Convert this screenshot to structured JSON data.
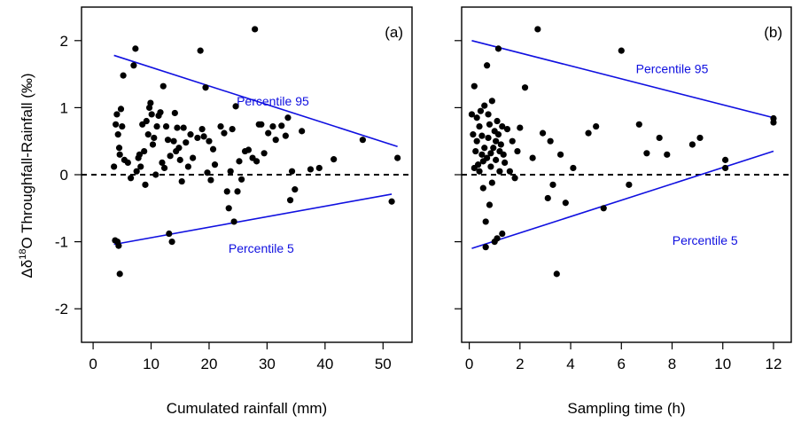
{
  "ylabel_parts": {
    "delta": "Δδ",
    "sup": "18",
    "rest": "O Throughfall-Rainfall (‰)"
  },
  "chart_data": [
    {
      "type": "scatter",
      "panel_label": "(a)",
      "xlabel": "Cumulated rainfall (mm)",
      "ylabel": "Δδ18O Throughfall-Rainfall (‰)",
      "xlim": [
        -2,
        55
      ],
      "ylim": [
        -2.5,
        2.5
      ],
      "xticks": [
        0,
        10,
        20,
        30,
        40,
        50
      ],
      "yticks": [
        -2,
        -1,
        0,
        1,
        2
      ],
      "zero_line": {
        "y": 0,
        "style": "dashed",
        "color": "#000000"
      },
      "point_color": "#000000",
      "line_color": "#1010e0",
      "lines": [
        {
          "name": "Percentile 95",
          "x": [
            3.6,
            52.5
          ],
          "y": [
            1.78,
            0.42
          ]
        },
        {
          "name": "Percentile 5",
          "x": [
            3.6,
            51.5
          ],
          "y": [
            -1.04,
            -0.29
          ]
        }
      ],
      "points": [
        [
          3.6,
          0.12
        ],
        [
          3.9,
          0.75
        ],
        [
          4.1,
          0.9
        ],
        [
          4.3,
          0.6
        ],
        [
          4.5,
          0.4
        ],
        [
          4.6,
          0.3
        ],
        [
          4.8,
          0.98
        ],
        [
          5.0,
          0.72
        ],
        [
          5.2,
          1.48
        ],
        [
          5.4,
          0.22
        ],
        [
          4.2,
          -1.0
        ],
        [
          4.4,
          -1.06
        ],
        [
          4.6,
          -1.48
        ],
        [
          3.8,
          -0.98
        ],
        [
          6.0,
          0.18
        ],
        [
          6.5,
          -0.05
        ],
        [
          7.0,
          1.63
        ],
        [
          7.3,
          1.88
        ],
        [
          7.5,
          0.05
        ],
        [
          7.8,
          0.25
        ],
        [
          8.0,
          0.3
        ],
        [
          8.2,
          0.12
        ],
        [
          8.5,
          0.75
        ],
        [
          8.8,
          0.35
        ],
        [
          9.0,
          -0.15
        ],
        [
          9.2,
          0.8
        ],
        [
          9.5,
          0.6
        ],
        [
          9.7,
          1.0
        ],
        [
          9.9,
          1.07
        ],
        [
          10.1,
          0.9
        ],
        [
          10.3,
          0.45
        ],
        [
          10.5,
          0.55
        ],
        [
          10.8,
          0.0
        ],
        [
          11.0,
          0.72
        ],
        [
          11.3,
          0.88
        ],
        [
          11.6,
          0.93
        ],
        [
          11.9,
          0.18
        ],
        [
          12.1,
          1.32
        ],
        [
          12.3,
          0.1
        ],
        [
          12.6,
          0.72
        ],
        [
          12.9,
          0.52
        ],
        [
          13.1,
          -0.88
        ],
        [
          13.3,
          0.28
        ],
        [
          13.6,
          -1.0
        ],
        [
          13.9,
          0.5
        ],
        [
          14.1,
          0.92
        ],
        [
          14.3,
          0.35
        ],
        [
          14.5,
          0.7
        ],
        [
          14.8,
          0.4
        ],
        [
          15.0,
          0.22
        ],
        [
          15.3,
          -0.1
        ],
        [
          15.6,
          0.7
        ],
        [
          16.0,
          0.48
        ],
        [
          16.4,
          0.12
        ],
        [
          16.8,
          0.6
        ],
        [
          17.2,
          0.25
        ],
        [
          18.0,
          0.55
        ],
        [
          18.5,
          1.85
        ],
        [
          18.8,
          0.68
        ],
        [
          19.1,
          0.57
        ],
        [
          19.4,
          1.3
        ],
        [
          19.7,
          0.03
        ],
        [
          20.0,
          0.5
        ],
        [
          20.3,
          -0.08
        ],
        [
          20.7,
          0.38
        ],
        [
          21.0,
          0.15
        ],
        [
          22.0,
          0.72
        ],
        [
          22.6,
          0.62
        ],
        [
          23.1,
          -0.25
        ],
        [
          23.4,
          -0.5
        ],
        [
          23.7,
          0.05
        ],
        [
          24.0,
          0.68
        ],
        [
          24.3,
          -0.7
        ],
        [
          24.6,
          1.02
        ],
        [
          24.9,
          -0.25
        ],
        [
          25.2,
          0.2
        ],
        [
          25.6,
          -0.07
        ],
        [
          26.2,
          0.35
        ],
        [
          26.8,
          0.37
        ],
        [
          27.5,
          0.25
        ],
        [
          27.9,
          2.17
        ],
        [
          28.2,
          0.2
        ],
        [
          28.6,
          0.75
        ],
        [
          29.0,
          0.75
        ],
        [
          29.5,
          0.32
        ],
        [
          30.2,
          0.62
        ],
        [
          31.0,
          0.72
        ],
        [
          31.5,
          0.52
        ],
        [
          32.5,
          0.73
        ],
        [
          33.2,
          0.58
        ],
        [
          33.6,
          0.85
        ],
        [
          34.0,
          -0.38
        ],
        [
          34.3,
          0.05
        ],
        [
          34.8,
          -0.22
        ],
        [
          36.0,
          0.65
        ],
        [
          37.5,
          0.08
        ],
        [
          39.0,
          0.1
        ],
        [
          41.5,
          0.23
        ],
        [
          46.5,
          0.52
        ],
        [
          51.5,
          -0.4
        ],
        [
          52.5,
          0.25
        ]
      ],
      "annotations": [
        {
          "text": "Percentile 95",
          "x": 31,
          "y": 1.1
        },
        {
          "text": "Percentile 5",
          "x": 29,
          "y": -1.1
        }
      ]
    },
    {
      "type": "scatter",
      "panel_label": "(b)",
      "xlabel": "Sampling time (h)",
      "ylabel": "",
      "xlim": [
        -0.3,
        12.7
      ],
      "ylim": [
        -2.5,
        2.5
      ],
      "xticks": [
        0,
        2,
        4,
        6,
        8,
        10,
        12
      ],
      "yticks": [
        -2,
        -1,
        0,
        1,
        2
      ],
      "zero_line": {
        "y": 0,
        "style": "dashed",
        "color": "#000000"
      },
      "point_color": "#000000",
      "line_color": "#1010e0",
      "lines": [
        {
          "name": "Percentile 95",
          "x": [
            0.1,
            12.0
          ],
          "y": [
            2.0,
            0.85
          ]
        },
        {
          "name": "Percentile 5",
          "x": [
            0.1,
            12.0
          ],
          "y": [
            -1.1,
            0.35
          ]
        }
      ],
      "points": [
        [
          0.1,
          0.9
        ],
        [
          0.15,
          0.6
        ],
        [
          0.2,
          1.32
        ],
        [
          0.2,
          0.1
        ],
        [
          0.25,
          0.35
        ],
        [
          0.3,
          0.85
        ],
        [
          0.3,
          0.5
        ],
        [
          0.35,
          0.15
        ],
        [
          0.4,
          0.72
        ],
        [
          0.4,
          0.05
        ],
        [
          0.45,
          0.95
        ],
        [
          0.5,
          0.3
        ],
        [
          0.5,
          0.58
        ],
        [
          0.55,
          -0.2
        ],
        [
          0.55,
          0.2
        ],
        [
          0.6,
          1.03
        ],
        [
          0.6,
          0.4
        ],
        [
          0.65,
          -0.7
        ],
        [
          0.65,
          -1.08
        ],
        [
          0.7,
          1.63
        ],
        [
          0.7,
          0.25
        ],
        [
          0.75,
          0.55
        ],
        [
          0.75,
          0.9
        ],
        [
          0.8,
          -0.45
        ],
        [
          0.8,
          0.75
        ],
        [
          0.85,
          0.12
        ],
        [
          0.85,
          0.32
        ],
        [
          0.9,
          1.1
        ],
        [
          0.9,
          -0.12
        ],
        [
          0.95,
          0.4
        ],
        [
          1.0,
          0.65
        ],
        [
          1.0,
          -1.0
        ],
        [
          1.05,
          0.22
        ],
        [
          1.05,
          0.5
        ],
        [
          1.1,
          -0.95
        ],
        [
          1.1,
          0.8
        ],
        [
          1.15,
          1.88
        ],
        [
          1.15,
          0.6
        ],
        [
          1.2,
          0.35
        ],
        [
          1.2,
          0.05
        ],
        [
          1.25,
          0.45
        ],
        [
          1.3,
          -0.88
        ],
        [
          1.3,
          0.72
        ],
        [
          1.35,
          0.3
        ],
        [
          1.4,
          0.18
        ],
        [
          1.5,
          0.68
        ],
        [
          1.6,
          0.05
        ],
        [
          1.7,
          0.5
        ],
        [
          1.8,
          -0.05
        ],
        [
          1.9,
          0.35
        ],
        [
          2.0,
          0.7
        ],
        [
          2.2,
          1.3
        ],
        [
          2.5,
          0.25
        ],
        [
          2.7,
          2.17
        ],
        [
          2.9,
          0.62
        ],
        [
          3.1,
          -0.35
        ],
        [
          3.2,
          0.5
        ],
        [
          3.3,
          -0.15
        ],
        [
          3.45,
          -1.48
        ],
        [
          3.6,
          0.3
        ],
        [
          3.8,
          -0.42
        ],
        [
          4.1,
          0.1
        ],
        [
          4.7,
          0.62
        ],
        [
          5.0,
          0.72
        ],
        [
          5.3,
          -0.5
        ],
        [
          6.0,
          1.85
        ],
        [
          6.3,
          -0.15
        ],
        [
          6.7,
          0.75
        ],
        [
          7.0,
          0.32
        ],
        [
          7.5,
          0.55
        ],
        [
          7.8,
          0.3
        ],
        [
          8.8,
          0.45
        ],
        [
          9.1,
          0.55
        ],
        [
          10.1,
          0.22
        ],
        [
          10.1,
          0.1
        ],
        [
          12.0,
          0.78
        ],
        [
          12.0,
          0.84
        ]
      ],
      "annotations": [
        {
          "text": "Percentile 95",
          "x": 8.0,
          "y": 1.58
        },
        {
          "text": "Percentile 5",
          "x": 9.3,
          "y": -0.98
        }
      ]
    }
  ]
}
